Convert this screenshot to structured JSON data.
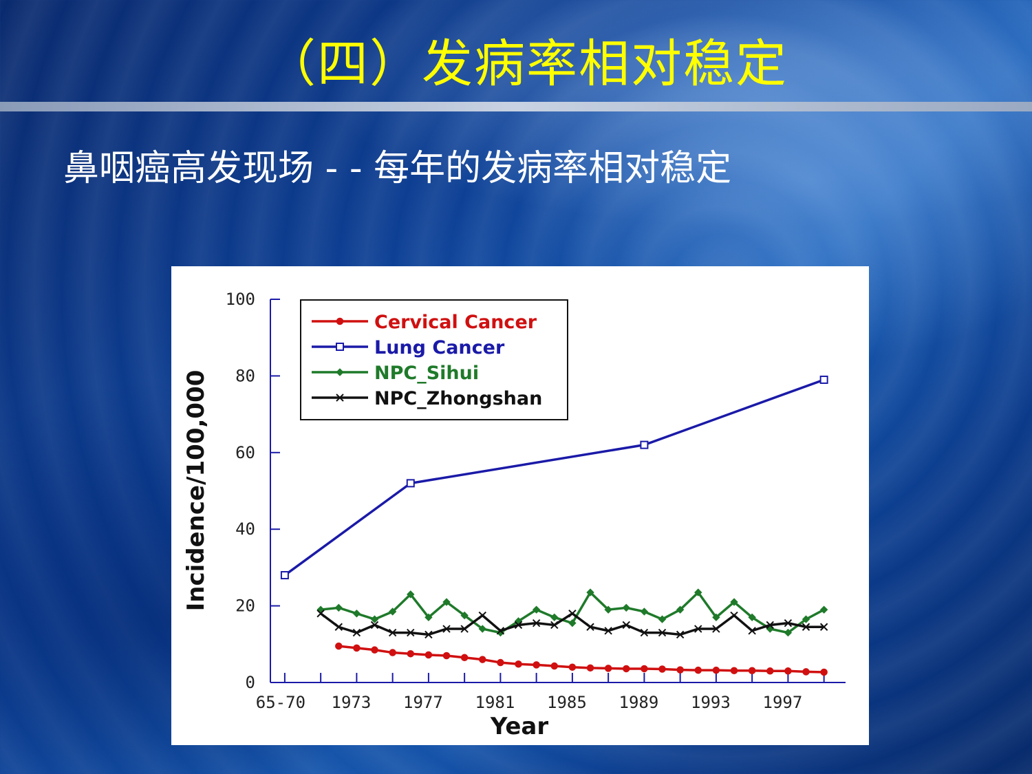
{
  "slide": {
    "title": "（四）发病率相对稳定",
    "subtitle": "鼻咽癌高发现场 - - 每年的发病率相对稳定"
  },
  "chart_data": {
    "type": "line",
    "title": "",
    "xlabel": "Year",
    "ylabel": "Incidence/100,000",
    "ylim": [
      0,
      100
    ],
    "y_ticks": [
      "0",
      "20",
      "40",
      "60",
      "80",
      "100"
    ],
    "x_ticks": [
      "65-70",
      "1973",
      "1977",
      "1981",
      "1985",
      "1989",
      "1993",
      "1997"
    ],
    "legend_position": "top-left",
    "grid": false,
    "series": [
      {
        "name": "Cervical Cancer",
        "color": "#d01010",
        "marker": "circle",
        "x": [
          1972,
          1973,
          1974,
          1975,
          1976,
          1977,
          1978,
          1979,
          1980,
          1981,
          1982,
          1983,
          1984,
          1985,
          1986,
          1987,
          1988,
          1989,
          1990,
          1991,
          1992,
          1993,
          1994,
          1995,
          1996,
          1997,
          1998,
          1999
        ],
        "values": [
          9.5,
          9,
          8.5,
          7.8,
          7.5,
          7.2,
          7,
          6.5,
          6,
          5.2,
          4.8,
          4.6,
          4.3,
          4,
          3.8,
          3.7,
          3.6,
          3.6,
          3.5,
          3.3,
          3.2,
          3.2,
          3.1,
          3.1,
          3,
          3,
          2.8,
          2.7
        ]
      },
      {
        "name": "Lung Cancer",
        "color": "#1a1aa8",
        "marker": "square",
        "x": [
          1969,
          1976,
          1989,
          1999
        ],
        "values": [
          28,
          52,
          62,
          79
        ]
      },
      {
        "name": "NPC_Sihui",
        "color": "#1f7a2a",
        "marker": "diamond",
        "x": [
          1971,
          1972,
          1973,
          1974,
          1975,
          1976,
          1977,
          1978,
          1979,
          1980,
          1981,
          1982,
          1983,
          1984,
          1985,
          1986,
          1987,
          1988,
          1989,
          1990,
          1991,
          1992,
          1993,
          1994,
          1995,
          1996,
          1997,
          1998,
          1999
        ],
        "values": [
          19,
          19.5,
          18,
          16.5,
          18.5,
          23,
          17,
          21,
          17.5,
          14,
          13,
          16,
          19,
          17,
          15.5,
          23.5,
          19,
          19.5,
          18.5,
          16.5,
          19,
          23.5,
          17,
          21,
          17,
          14,
          13,
          16.5,
          19
        ]
      },
      {
        "name": "NPC_Zhongshan",
        "color": "#111111",
        "marker": "x",
        "x": [
          1971,
          1972,
          1973,
          1974,
          1975,
          1976,
          1977,
          1978,
          1979,
          1980,
          1981,
          1982,
          1983,
          1984,
          1985,
          1986,
          1987,
          1988,
          1989,
          1990,
          1991,
          1992,
          1993,
          1994,
          1995,
          1996,
          1997,
          1998,
          1999
        ],
        "values": [
          18,
          14.5,
          13,
          15,
          13,
          13,
          12.5,
          14,
          14,
          17.5,
          13.5,
          15,
          15.5,
          15,
          18,
          14.5,
          13.5,
          15,
          13,
          13,
          12.5,
          14,
          14,
          17.5,
          13.5,
          15,
          15.5,
          14.5,
          14.5
        ]
      }
    ]
  }
}
